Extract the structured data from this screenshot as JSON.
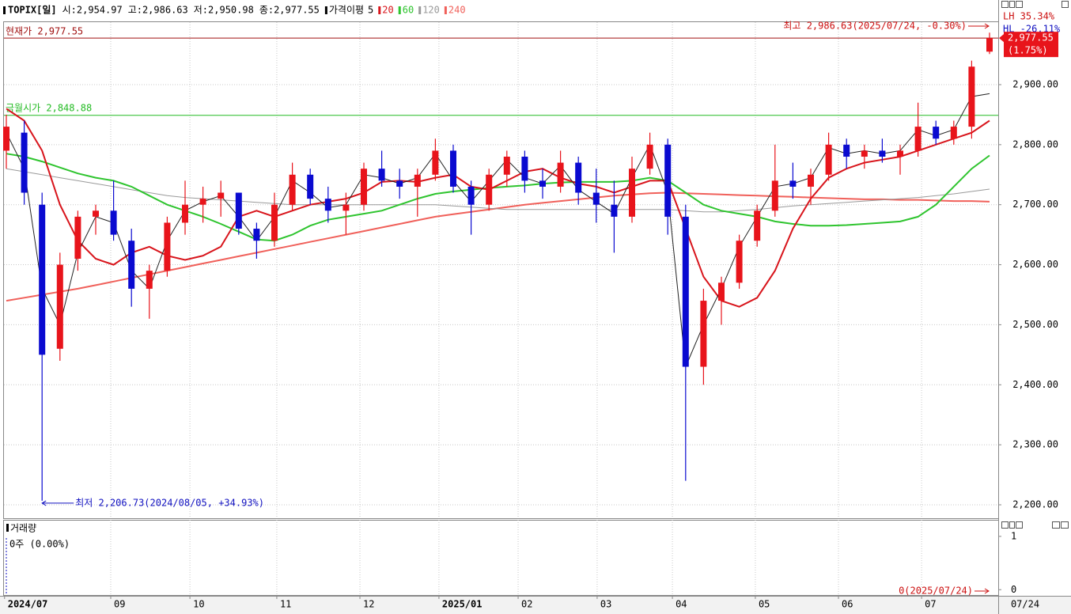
{
  "chart_data": {
    "type": "candlestick",
    "header_items": [
      "TOPIX[일]",
      "시:2,954.97",
      "고:2,986.63",
      "저:2,950.98",
      "종:2,977.55"
    ],
    "ma_legend_title": "가격이평",
    "up_color": "#e8141b",
    "down_color": "#0a0ad0",
    "ylim": [
      2177.6,
      3004.1
    ],
    "yticks": [
      {
        "value": 2900,
        "label": "2,900.00"
      },
      {
        "value": 2800,
        "label": "2,800.00"
      },
      {
        "value": 2700,
        "label": "2,700.00"
      },
      {
        "value": 2600,
        "label": "2,600.00"
      },
      {
        "value": 2500,
        "label": "2,500.00"
      },
      {
        "value": 2400,
        "label": "2,400.00"
      },
      {
        "value": 2300,
        "label": "2,300.00"
      },
      {
        "value": 2200,
        "label": "2,200.00"
      }
    ],
    "grid": true,
    "xticks": [
      {
        "value": -0.1,
        "label": "2024/07"
      },
      {
        "value": 5.84,
        "label": "09"
      },
      {
        "value": 10.27,
        "label": "10"
      },
      {
        "value": 15.13,
        "label": "11"
      },
      {
        "value": 19.78,
        "label": "12"
      },
      {
        "value": 24.2,
        "label": "2025/01"
      },
      {
        "value": 28.63,
        "label": "02"
      },
      {
        "value": 33.05,
        "label": "03"
      },
      {
        "value": 37.26,
        "label": "04"
      },
      {
        "value": 41.9,
        "label": "05"
      },
      {
        "value": 46.55,
        "label": "06"
      },
      {
        "value": 51.2,
        "label": "07"
      }
    ],
    "last_date_label": "07/24",
    "categories": [
      null,
      null,
      null,
      null,
      null,
      null,
      null,
      null,
      null,
      null,
      null,
      null,
      null,
      null,
      null,
      null,
      null,
      null,
      null,
      null,
      null,
      null,
      null,
      null,
      null,
      null,
      null,
      null,
      null,
      null,
      null,
      null,
      null,
      null,
      null,
      null,
      null,
      null,
      null,
      null,
      null,
      null,
      null,
      null,
      null,
      null,
      null,
      null,
      null,
      null,
      null,
      null,
      null,
      null,
      null,
      null
    ],
    "open": [
      2790,
      2820,
      2700,
      2460,
      2610,
      2680,
      2690,
      2640,
      2560,
      2590,
      2670,
      2700,
      2710,
      2720,
      2660,
      2640,
      2700,
      2750,
      2710,
      2690,
      2700,
      2760,
      2740,
      2730,
      2750,
      2790,
      2730,
      2700,
      2750,
      2780,
      2740,
      2730,
      2770,
      2720,
      2700,
      2680,
      2760,
      2800,
      2680,
      2430,
      2540,
      2570,
      2640,
      2690,
      2740,
      2730,
      2750,
      2800,
      2780,
      2790,
      2780,
      2790,
      2830,
      2810,
      2830,
      2954.97
    ],
    "high": [
      2850,
      2840,
      2720,
      2620,
      2690,
      2700,
      2740,
      2660,
      2600,
      2680,
      2740,
      2730,
      2740,
      2720,
      2670,
      2720,
      2770,
      2760,
      2730,
      2720,
      2770,
      2790,
      2760,
      2760,
      2810,
      2800,
      2740,
      2760,
      2790,
      2790,
      2760,
      2790,
      2780,
      2760,
      2740,
      2780,
      2820,
      2810,
      2700,
      2560,
      2580,
      2650,
      2700,
      2800,
      2770,
      2760,
      2820,
      2810,
      2800,
      2810,
      2800,
      2870,
      2840,
      2840,
      2940,
      2986.63
    ],
    "low": [
      2760,
      2700,
      2206.73,
      2440,
      2590,
      2650,
      2640,
      2530,
      2510,
      2580,
      2650,
      2670,
      2680,
      2650,
      2610,
      2630,
      2690,
      2700,
      2670,
      2650,
      2690,
      2730,
      2710,
      2680,
      2740,
      2720,
      2650,
      2690,
      2730,
      2720,
      2710,
      2720,
      2700,
      2670,
      2620,
      2670,
      2750,
      2650,
      2240,
      2400,
      2500,
      2560,
      2630,
      2680,
      2710,
      2700,
      2740,
      2760,
      2760,
      2770,
      2750,
      2780,
      2800,
      2800,
      2810,
      2950.98
    ],
    "close": [
      2830,
      2720,
      2450,
      2600,
      2680,
      2690,
      2650,
      2560,
      2590,
      2670,
      2700,
      2710,
      2720,
      2660,
      2640,
      2700,
      2750,
      2710,
      2690,
      2700,
      2760,
      2740,
      2730,
      2750,
      2790,
      2730,
      2700,
      2750,
      2780,
      2740,
      2730,
      2770,
      2720,
      2700,
      2680,
      2760,
      2800,
      2680,
      2430,
      2540,
      2570,
      2640,
      2690,
      2740,
      2730,
      2750,
      2800,
      2780,
      2790,
      2780,
      2790,
      2830,
      2810,
      2830,
      2930,
      2977.55
    ],
    "series": [
      {
        "name": "5",
        "color": "#222222",
        "values": [
          2820,
          2760,
          2560,
          2500,
          2620,
          2680,
          2670,
          2590,
          2560,
          2640,
          2690,
          2705,
          2715,
          2680,
          2640,
          2680,
          2740,
          2720,
          2695,
          2700,
          2750,
          2745,
          2735,
          2745,
          2785,
          2740,
          2705,
          2740,
          2775,
          2745,
          2735,
          2765,
          2725,
          2705,
          2685,
          2745,
          2800,
          2720,
          2430,
          2500,
          2560,
          2630,
          2680,
          2730,
          2735,
          2745,
          2795,
          2785,
          2790,
          2785,
          2790,
          2825,
          2815,
          2825,
          2880,
          2885
        ]
      },
      {
        "name": "20",
        "color": "#d8141b",
        "values": [
          2860,
          2840,
          2790,
          2700,
          2640,
          2610,
          2600,
          2620,
          2630,
          2615,
          2608,
          2615,
          2630,
          2680,
          2690,
          2680,
          2690,
          2700,
          2705,
          2710,
          2720,
          2738,
          2740,
          2738,
          2745,
          2750,
          2730,
          2725,
          2740,
          2755,
          2760,
          2745,
          2735,
          2730,
          2720,
          2730,
          2740,
          2740,
          2660,
          2580,
          2540,
          2530,
          2545,
          2590,
          2660,
          2710,
          2745,
          2760,
          2770,
          2775,
          2780,
          2790,
          2800,
          2810,
          2820,
          2840
        ]
      },
      {
        "name": "60",
        "color": "#2ec42e",
        "values": [
          2785,
          2780,
          2772,
          2762,
          2752,
          2745,
          2740,
          2730,
          2715,
          2700,
          2690,
          2680,
          2668,
          2655,
          2642,
          2640,
          2650,
          2665,
          2675,
          2680,
          2685,
          2690,
          2700,
          2710,
          2718,
          2722,
          2725,
          2728,
          2730,
          2732,
          2735,
          2737,
          2738,
          2738,
          2738,
          2740,
          2745,
          2740,
          2720,
          2700,
          2690,
          2685,
          2680,
          2672,
          2668,
          2665,
          2665,
          2666,
          2668,
          2670,
          2672,
          2680,
          2700,
          2730,
          2760,
          2782
        ]
      },
      {
        "name": "120",
        "color": "#9a9a9a",
        "values": [
          2760,
          2755,
          2750,
          2745,
          2740,
          2735,
          2730,
          2725,
          2720,
          2715,
          2712,
          2710,
          2708,
          2706,
          2704,
          2702,
          2700,
          2700,
          2700,
          2700,
          2700,
          2700,
          2700,
          2700,
          2700,
          2698,
          2696,
          2694,
          2692,
          2692,
          2692,
          2692,
          2692,
          2692,
          2692,
          2692,
          2692,
          2692,
          2690,
          2688,
          2688,
          2690,
          2692,
          2695,
          2698,
          2700,
          2702,
          2704,
          2706,
          2708,
          2710,
          2712,
          2715,
          2718,
          2722,
          2726
        ]
      },
      {
        "name": "240",
        "color": "#f0605a",
        "values": [
          2540,
          2545,
          2550,
          2555,
          2560,
          2566,
          2572,
          2578,
          2584,
          2590,
          2596,
          2602,
          2608,
          2614,
          2620,
          2626,
          2632,
          2638,
          2644,
          2650,
          2656,
          2662,
          2668,
          2674,
          2680,
          2684,
          2688,
          2692,
          2696,
          2700,
          2703,
          2706,
          2709,
          2712,
          2715,
          2717,
          2719,
          2720,
          2719,
          2718,
          2717,
          2716,
          2715,
          2714,
          2713,
          2712,
          2711,
          2710,
          2709,
          2709,
          2708,
          2708,
          2707,
          2706,
          2706,
          2705
        ]
      }
    ],
    "current_label": "현재가 2,977.55",
    "current_price": 2977.55,
    "month_open_label": "금월시가 2,848.88",
    "month_open": 2848.88,
    "high_note": "최고 2,986.63(2025/07/24, -0.30%)",
    "low_note": "최저 2,206.73(2024/08/05, +34.93%)",
    "lh": "LH  35.34%",
    "hl": "HL -26.11%",
    "price_tag": "2,977.55",
    "change_tag": "(1.75%)",
    "volume_title": "거래량",
    "volume_note": "0주 (0.00%)",
    "volume_ylim": [
      -0.1,
      1.31
    ],
    "volume_yticks": [
      1,
      0
    ],
    "volume_end_note": "0(2025/07/24)"
  }
}
